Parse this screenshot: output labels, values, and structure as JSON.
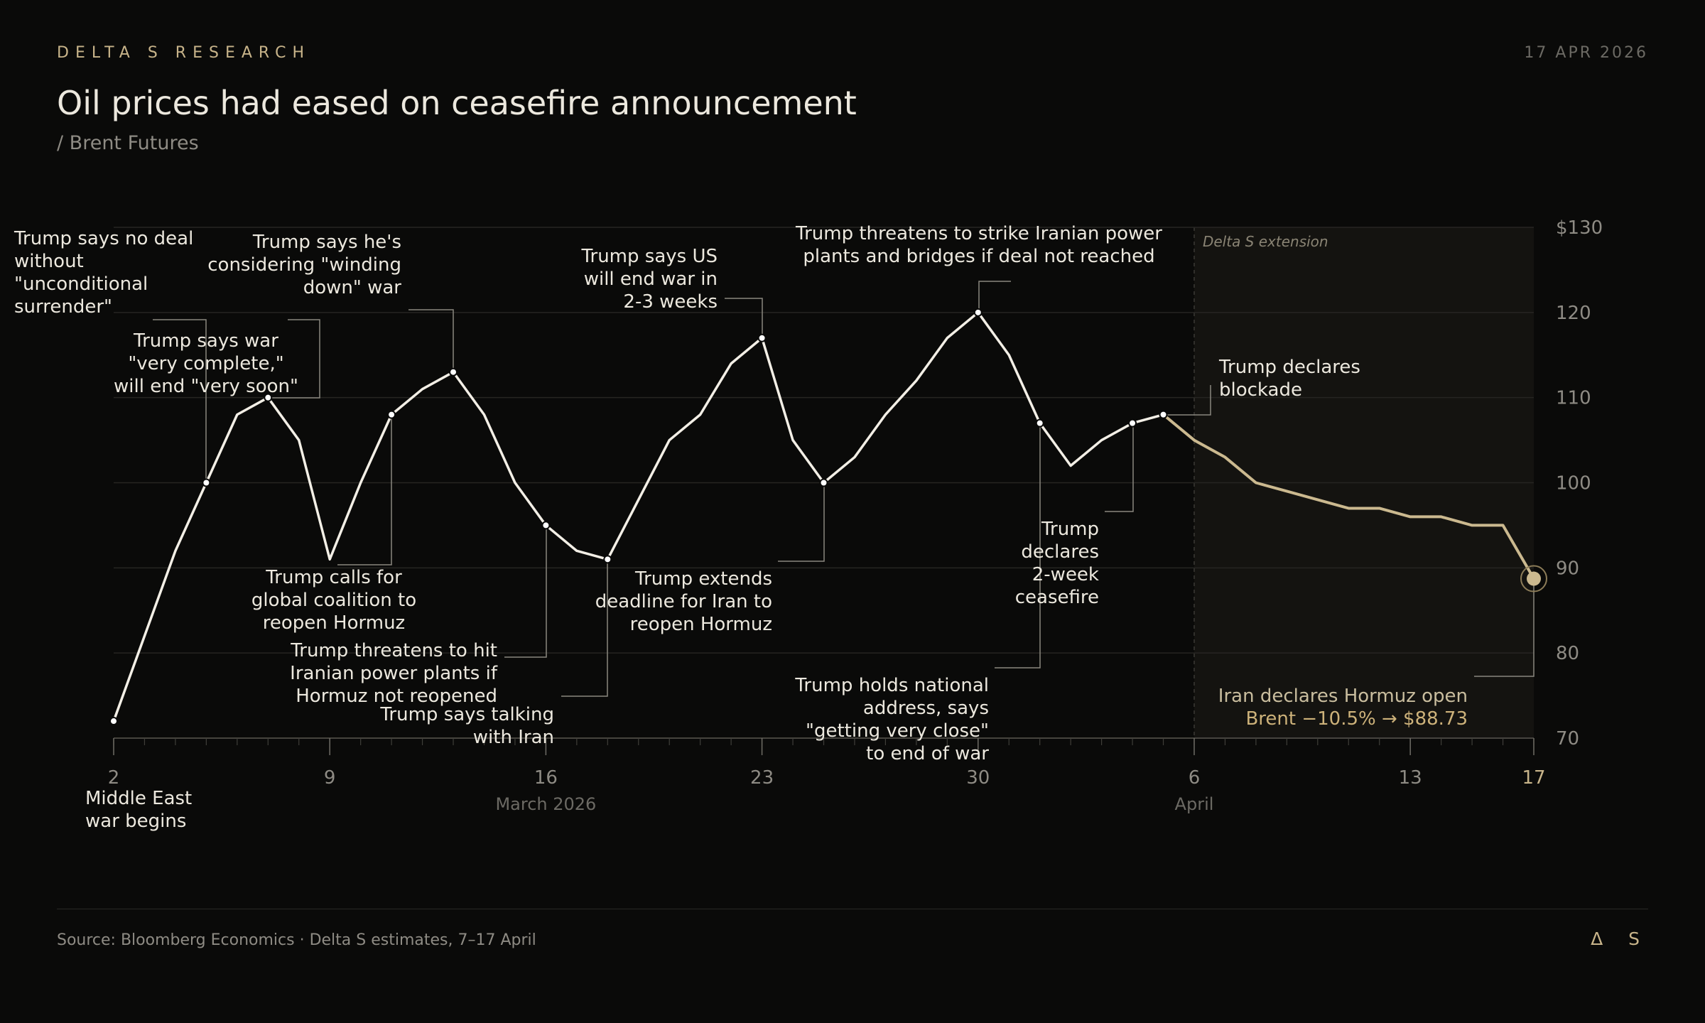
{
  "header": {
    "brand": "DELTA S RESEARCH",
    "date": "17 APR 2026",
    "title": "Oil prices had eased on ceasefire announcement",
    "subtitle": "/ Brent Futures"
  },
  "footer": {
    "source": "Source: Bloomberg Economics · Delta S estimates, 7–17 April",
    "logo": "Δ S"
  },
  "colors": {
    "background": "#0a0a09",
    "actual_line": "#f3efe6",
    "projection_line": "#cbb98f",
    "accent": "#c8b48a",
    "grid": "#262522",
    "shade": "#141310"
  },
  "chart_data": {
    "type": "line",
    "title": "Oil prices had eased on ceasefire announcement",
    "subtitle": "/ Brent Futures",
    "x_type": "date",
    "xlim": [
      "2026-03-02",
      "2026-04-17"
    ],
    "ylim": [
      70,
      130
    ],
    "y_ticks": [
      70,
      80,
      90,
      100,
      110,
      120,
      130
    ],
    "y_tick_labels": [
      "70",
      "80",
      "90",
      "100",
      "110",
      "120",
      "$130"
    ],
    "x_ticks": [
      {
        "date": "2026-03-02",
        "label": "2"
      },
      {
        "date": "2026-03-09",
        "label": "9"
      },
      {
        "date": "2026-03-16",
        "label": "16"
      },
      {
        "date": "2026-03-23",
        "label": "23"
      },
      {
        "date": "2026-03-30",
        "label": "30"
      },
      {
        "date": "2026-04-06",
        "label": "6"
      },
      {
        "date": "2026-04-13",
        "label": "13"
      },
      {
        "date": "2026-04-17",
        "label": "17"
      }
    ],
    "month_labels": [
      {
        "date": "2026-03-16",
        "label": "March 2026"
      },
      {
        "date": "2026-04-06",
        "label": "April"
      }
    ],
    "grid": "horizontal",
    "shaded_region": {
      "start": "2026-04-06",
      "end": "2026-04-17",
      "label": "Delta S extension"
    },
    "series": [
      {
        "role": "actual",
        "x": [
          "2026-03-02",
          "2026-03-04",
          "2026-03-05",
          "2026-03-06",
          "2026-03-07",
          "2026-03-08",
          "2026-03-09",
          "2026-03-10",
          "2026-03-11",
          "2026-03-12",
          "2026-03-13",
          "2026-03-14",
          "2026-03-15",
          "2026-03-16",
          "2026-03-17",
          "2026-03-18",
          "2026-03-19",
          "2026-03-20",
          "2026-03-21",
          "2026-03-22",
          "2026-03-23",
          "2026-03-24",
          "2026-03-25",
          "2026-03-26",
          "2026-03-27",
          "2026-03-28",
          "2026-03-29",
          "2026-03-30",
          "2026-03-31",
          "2026-04-01",
          "2026-04-02",
          "2026-04-03",
          "2026-04-04",
          "2026-04-05"
        ],
        "y": [
          72,
          92,
          100,
          108,
          110,
          105,
          91,
          100,
          108,
          111,
          113,
          108,
          100,
          95,
          92,
          91,
          98,
          105,
          108,
          114,
          117,
          105,
          100,
          103,
          108,
          112,
          117,
          120,
          115,
          107,
          102,
          105,
          107,
          108
        ]
      },
      {
        "role": "projection",
        "x": [
          "2026-04-05",
          "2026-04-06",
          "2026-04-07",
          "2026-04-08",
          "2026-04-09",
          "2026-04-10",
          "2026-04-11",
          "2026-04-12",
          "2026-04-13",
          "2026-04-14",
          "2026-04-15",
          "2026-04-16",
          "2026-04-17"
        ],
        "y": [
          108,
          105,
          103,
          100,
          99,
          98,
          97,
          97,
          96,
          96,
          95,
          95,
          88.73
        ]
      }
    ],
    "annotations": [
      {
        "date": "2026-03-02",
        "value": 72,
        "lines": [
          "Middle East",
          "war begins"
        ]
      },
      {
        "date": "2026-03-05",
        "value": 100,
        "lines": [
          "Trump says no deal",
          "without",
          "\"unconditional",
          "surrender\""
        ]
      },
      {
        "date": "2026-03-07",
        "value": 110,
        "lines": [
          "Trump says war",
          "\"very complete,\"",
          "will end \"very soon\""
        ]
      },
      {
        "date": "2026-03-11",
        "value": 108,
        "lines": [
          "Trump calls for",
          "global coalition to",
          "reopen Hormuz"
        ]
      },
      {
        "date": "2026-03-13",
        "value": 113,
        "lines": [
          "Trump says he's",
          "considering \"winding",
          "down\" war"
        ]
      },
      {
        "date": "2026-03-16",
        "value": 95,
        "lines": [
          "Trump threatens to hit",
          "Iranian power plants if",
          "Hormuz not reopened"
        ]
      },
      {
        "date": "2026-03-18",
        "value": 91,
        "lines": [
          "Trump says talking",
          "with Iran"
        ]
      },
      {
        "date": "2026-03-23",
        "value": 117,
        "lines": [
          "Trump says US",
          "will end war in",
          "2-3 weeks"
        ]
      },
      {
        "date": "2026-03-25",
        "value": 100,
        "lines": [
          "Trump extends",
          "deadline for Iran to",
          "reopen Hormuz"
        ]
      },
      {
        "date": "2026-03-30",
        "value": 120,
        "lines": [
          "Trump threatens to strike Iranian power",
          "plants and bridges if deal not reached"
        ]
      },
      {
        "date": "2026-04-01",
        "value": 107,
        "lines": [
          "Trump holds national",
          "address, says",
          "\"getting very close\"",
          "to end of war"
        ]
      },
      {
        "date": "2026-04-04",
        "value": 107,
        "lines": [
          "Trump",
          "declares",
          "2-week",
          "ceasefire"
        ]
      },
      {
        "date": "2026-04-05",
        "value": 108,
        "lines": [
          "Trump declares",
          "blockade"
        ]
      },
      {
        "date": "2026-04-17",
        "value": 88.73,
        "lines": [
          "Iran declares Hormuz open",
          "Brent −10.5% → $88.73"
        ]
      }
    ]
  }
}
